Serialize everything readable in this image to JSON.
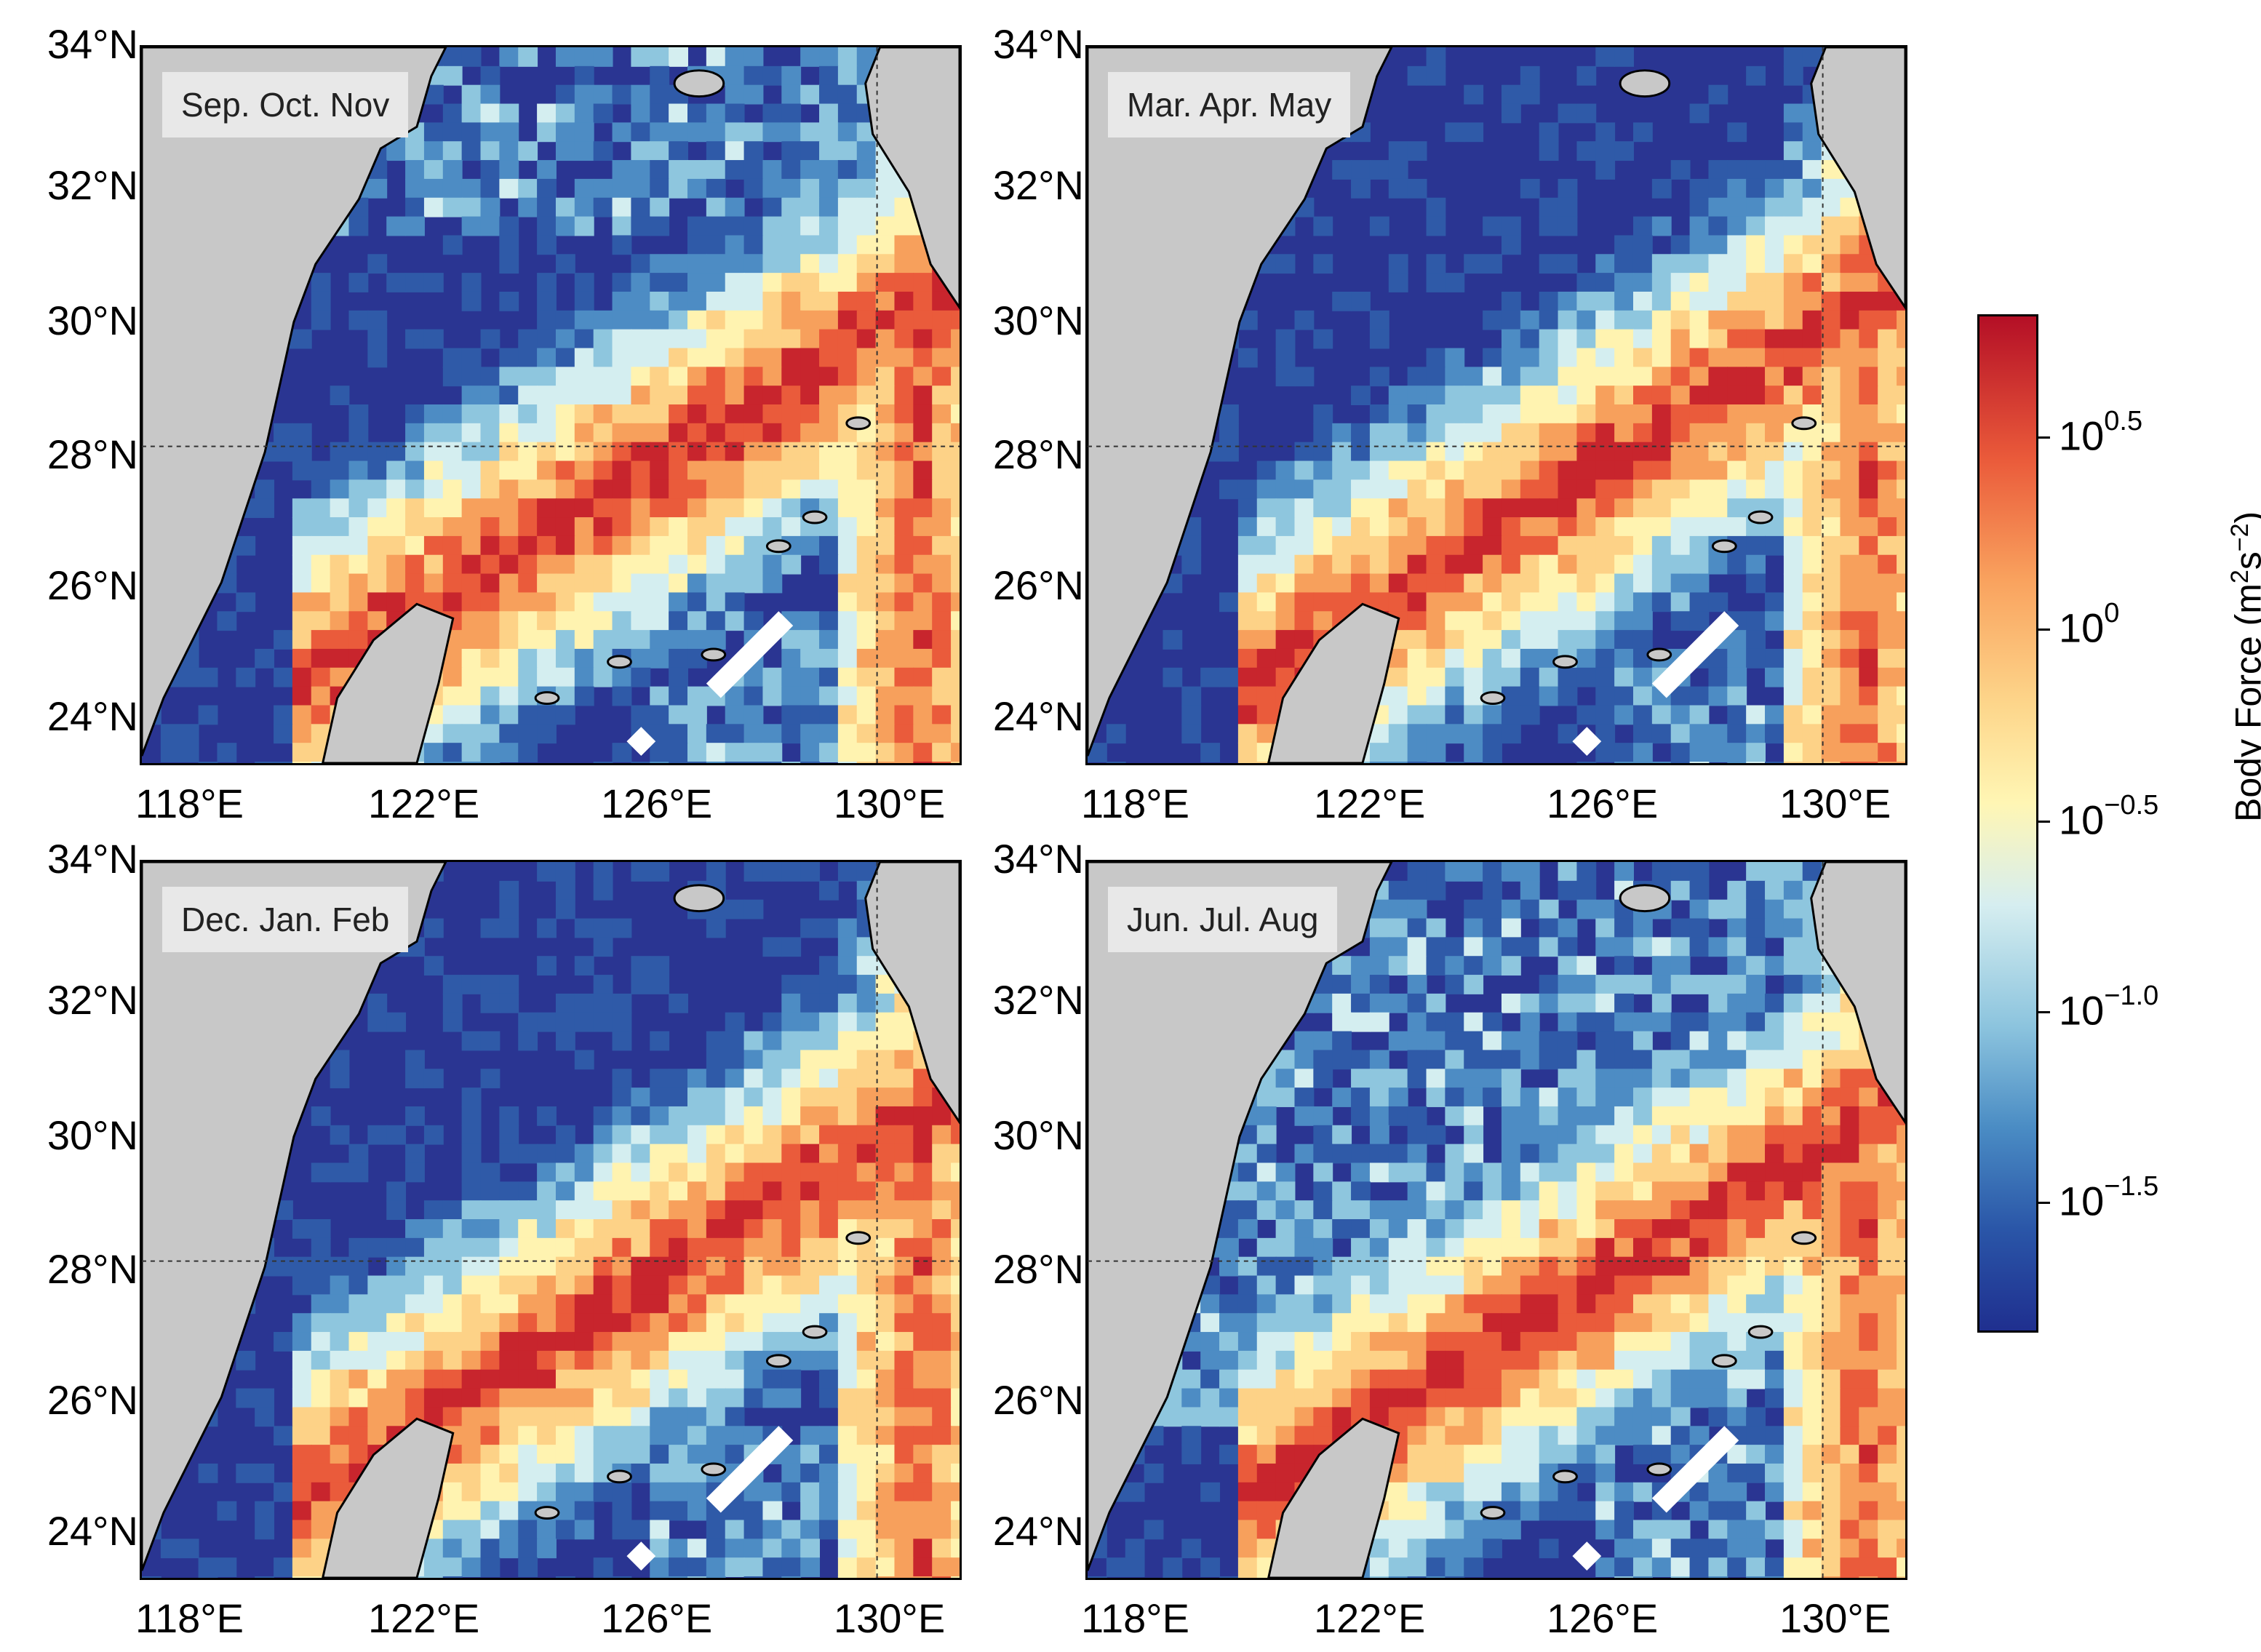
{
  "panels": [
    {
      "label": "Sep. Oct. Nov",
      "variant": 0
    },
    {
      "label": "Mar. Apr. May",
      "variant": 1
    },
    {
      "label": "Dec. Jan. Feb",
      "variant": 2
    },
    {
      "label": "Jun. Jul. Aug",
      "variant": 3
    }
  ],
  "lat_ticks": [
    "34°N",
    "32°N",
    "30°N",
    "28°N",
    "26°N",
    "24°N"
  ],
  "lon_ticks": [
    "118°E",
    "122°E",
    "126°E",
    "130°E"
  ],
  "colorbar": {
    "title_base": "Body Force (m",
    "title_sup1": "2",
    "title_mid": "s",
    "title_sup2": "−2",
    "title_end": ")",
    "ticks": [
      {
        "base": "10",
        "exp": "0.5"
      },
      {
        "base": "10",
        "exp": "0"
      },
      {
        "base": "10",
        "exp": "−0.5"
      },
      {
        "base": "10",
        "exp": "−1.0"
      },
      {
        "base": "10",
        "exp": "−1.5"
      }
    ]
  },
  "colors": {
    "land": "#c8c8c8",
    "ocean_low": "#2a3592",
    "ocean_high": "#e53b2d",
    "coastline": "#000000"
  }
}
